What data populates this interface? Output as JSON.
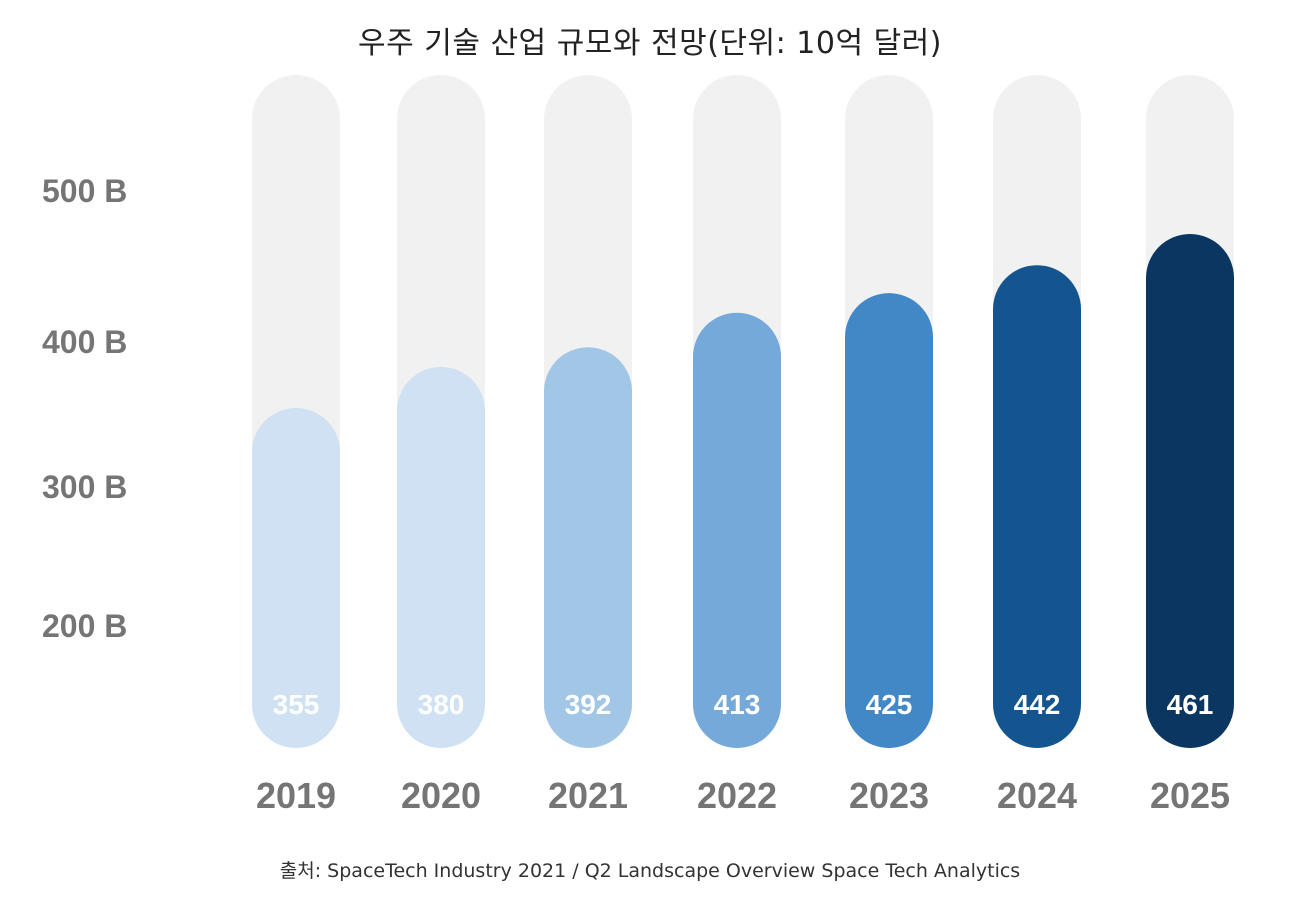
{
  "chart_data": {
    "type": "bar",
    "title": "우주 기술 산업 규모와 전망(단위: 10억 달러)",
    "categories": [
      "2019",
      "2020",
      "2021",
      "2022",
      "2023",
      "2024",
      "2025"
    ],
    "values": [
      355,
      380,
      392,
      413,
      425,
      442,
      461
    ],
    "data_labels": [
      "355",
      "380",
      "392",
      "413",
      "425",
      "442",
      "461"
    ],
    "ytick_labels": [
      "200 B",
      "300 B",
      "400 B",
      "500 B"
    ],
    "ytick_values": [
      200,
      300,
      400,
      500
    ],
    "xlabel": "",
    "ylabel": "",
    "grid": false,
    "legend": "none",
    "bar_colors": [
      "#cfe1f2",
      "#cfe1f2",
      "#a2c7e6",
      "#74a9d9",
      "#4287c6",
      "#14558f",
      "#0b3661"
    ],
    "track_color": "#f1f1f1"
  },
  "source": "출처: SpaceTech Industry 2021 / Q2 Landscape Overview Space Tech Analytics"
}
